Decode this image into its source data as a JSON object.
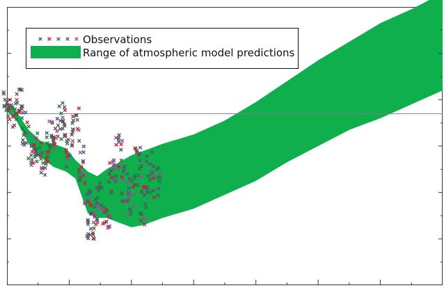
{
  "chart_data": {
    "type": "scatter",
    "title": "",
    "xlabel": "",
    "ylabel": "",
    "xlim": [
      0,
      7
    ],
    "ylim": [
      0,
      6
    ],
    "grid": false,
    "legend_position": "top-left",
    "reference_line": {
      "y": 3.7,
      "color": "#808080"
    },
    "legend": [
      {
        "label": "Observations",
        "marker": "x",
        "colors": [
          "#555555",
          "#cc1f2e",
          "#1f7a3d",
          "#555577",
          "#a04a9a"
        ]
      },
      {
        "label": "Range of atmospheric model predictions",
        "color": "#0eaf4c"
      }
    ],
    "series": [
      {
        "kind": "band",
        "color": "#0eaf4c",
        "x": [
          0.0,
          0.15,
          0.35,
          0.55,
          0.75,
          0.95,
          1.1,
          1.3,
          1.45,
          1.6,
          1.8,
          2.0,
          2.2,
          2.5,
          3.0,
          3.5,
          4.0,
          4.5,
          5.0,
          5.5,
          6.0,
          6.5,
          7.0
        ],
        "upper": [
          3.95,
          3.75,
          3.35,
          3.1,
          3.05,
          2.95,
          2.7,
          2.45,
          2.35,
          2.5,
          2.65,
          2.8,
          2.9,
          3.05,
          3.25,
          3.55,
          3.95,
          4.4,
          4.85,
          5.25,
          5.65,
          5.95,
          6.3
        ],
        "lower": [
          3.75,
          3.55,
          3.05,
          2.75,
          2.55,
          2.45,
          2.3,
          1.55,
          1.45,
          1.45,
          1.35,
          1.25,
          1.3,
          1.45,
          1.65,
          1.95,
          2.25,
          2.65,
          3.0,
          3.35,
          3.6,
          3.9,
          4.2
        ]
      },
      {
        "kind": "observations",
        "name": "Observations",
        "colors": [
          "#555555",
          "#cc1f2e",
          "#1f7a3d",
          "#555577",
          "#a04a9a"
        ],
        "x": [
          0.0,
          0.1,
          0.2,
          0.3,
          0.4,
          0.5,
          0.6,
          0.7,
          0.8,
          0.9,
          1.0,
          1.1,
          1.2,
          1.3,
          1.35,
          1.4,
          1.5,
          1.6,
          1.7,
          1.8,
          1.9,
          2.0,
          2.1,
          2.2,
          2.3,
          2.4
        ],
        "y": [
          3.9,
          3.7,
          4.0,
          3.4,
          2.8,
          3.0,
          2.6,
          3.2,
          3.3,
          3.6,
          2.9,
          3.5,
          2.6,
          1.7,
          1.2,
          1.6,
          1.9,
          1.5,
          2.3,
          2.8,
          2.2,
          1.9,
          2.6,
          1.7,
          2.4,
          2.2
        ],
        "spread": [
          0.3,
          0.35,
          0.3,
          0.4,
          0.25,
          0.35,
          0.3,
          0.35,
          0.35,
          0.45,
          0.35,
          0.4,
          0.4,
          0.35,
          0.25,
          0.3,
          0.35,
          0.3,
          0.45,
          0.45,
          0.4,
          0.45,
          0.45,
          0.45,
          0.5,
          0.4
        ]
      }
    ]
  }
}
